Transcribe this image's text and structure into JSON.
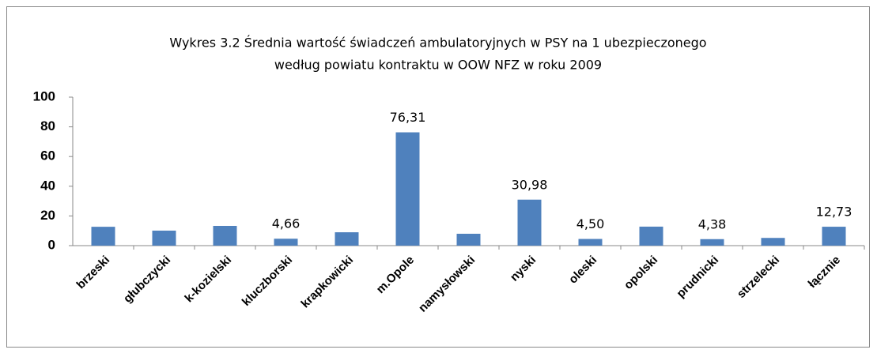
{
  "chart_data": {
    "type": "bar",
    "title": [
      "Wykres 3.2  Średnia wartość świadczeń ambulatoryjnych w PSY na 1 ubezpieczonego",
      "według powiatu kontraktu w OOW NFZ w roku 2009"
    ],
    "categories": [
      "brzeski",
      "głubczycki",
      "k-kozielski",
      "kluczborski",
      "krapkowicki",
      "m.Opole",
      "namysłowski",
      "nyski",
      "oleski",
      "opolski",
      "prudnicki",
      "strzelecki",
      "łącznie"
    ],
    "values": [
      12.7,
      10.1,
      13.3,
      4.66,
      9.0,
      76.31,
      8.0,
      30.98,
      4.5,
      12.8,
      4.38,
      5.2,
      12.73
    ],
    "value_labels": [
      null,
      null,
      null,
      "4,66",
      null,
      "76,31",
      null,
      "30,98",
      "4,50",
      null,
      "4,38",
      null,
      "12,73"
    ],
    "color": "#4f81bd",
    "ylim": [
      0,
      100
    ],
    "yticks": [
      0,
      20,
      40,
      60,
      80,
      100
    ],
    "grid": false
  }
}
